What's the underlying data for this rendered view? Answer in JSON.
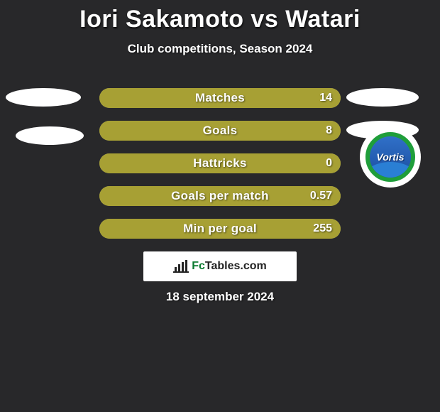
{
  "header": {
    "title": "Iori Sakamoto vs Watari",
    "subtitle": "Club competitions, Season 2024"
  },
  "date_text": "18 september 2024",
  "footer_logo": {
    "prefix": "Fc",
    "suffix": "Tables.com"
  },
  "club_badge": {
    "name": "Tokushima Vortis",
    "script": "Vortis",
    "ring_color": "#1f9e3a",
    "top_color": "#3070c8",
    "bottom_color": "#1b4ea0"
  },
  "palette": {
    "background": "#28282a",
    "bar_fill": "#a7a034",
    "bar_empty": "#7a7b7c",
    "text": "#ffffff"
  },
  "stats": [
    {
      "label": "Matches",
      "value": "14",
      "fill_pct": 100
    },
    {
      "label": "Goals",
      "value": "8",
      "fill_pct": 100
    },
    {
      "label": "Hattricks",
      "value": "0",
      "fill_pct": 100
    },
    {
      "label": "Goals per match",
      "value": "0.57",
      "fill_pct": 100
    },
    {
      "label": "Min per goal",
      "value": "255",
      "fill_pct": 100
    }
  ]
}
